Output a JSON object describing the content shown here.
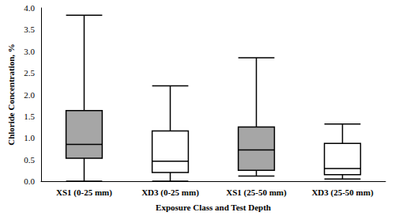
{
  "chart_data": {
    "type": "boxplot",
    "x_label": "Exposure Class and Test Depth",
    "y_label": "Chloride Concentration, %",
    "categories": [
      "XS1 (0-25 mm)",
      "XD3 (0-25 mm)",
      "XS1 (25-50 mm)",
      "XD3 (25-50 mm)"
    ],
    "values": [
      [
        0.0,
        0.53,
        0.85,
        1.63,
        3.83
      ],
      [
        0.0,
        0.2,
        0.46,
        1.16,
        2.2
      ],
      [
        0.12,
        0.25,
        0.72,
        1.25,
        2.85
      ],
      [
        0.05,
        0.15,
        0.29,
        0.87,
        1.32
      ]
    ],
    "colors": [
      "#a6a6a6",
      "#ffffff",
      "#a6a6a6",
      "#ffffff"
    ],
    "ylim": [
      0,
      4
    ],
    "yticks": [
      {
        "value": 0,
        "label": "0.0"
      },
      0.5,
      {
        "value": 1,
        "label": "1.0"
      },
      1.5,
      {
        "value": 2,
        "label": "2.0"
      },
      2.5,
      {
        "value": 3,
        "label": "3.0"
      },
      3.5,
      {
        "value": 4,
        "label": "4.0"
      }
    ],
    "grid": false
  }
}
